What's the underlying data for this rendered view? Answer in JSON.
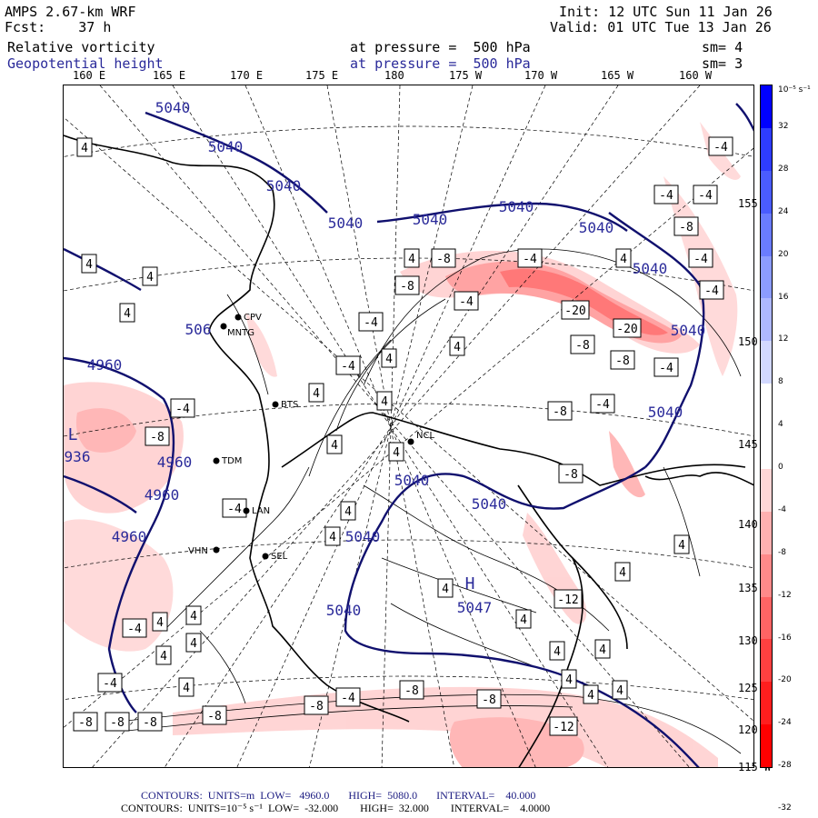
{
  "header": {
    "model": "AMPS 2.67-km WRF",
    "forecast": "Fcst:    37 h",
    "init": "Init: 12 UTC Sun 11 Jan 26",
    "valid": "Valid: 01 UTC Tue 13 Jan 26",
    "field1_name": "Relative vorticity",
    "field1_pressure": "at pressure =  500 hPa",
    "field1_sm": "sm= 4",
    "field2_name": "Geopotential height",
    "field2_pressure": "at pressure =  500 hPa",
    "field2_sm": "sm= 3"
  },
  "longitude_labels": [
    "160 E",
    "165 E",
    "170 E",
    "175 E",
    "180",
    "175 W",
    "170 W",
    "165 W",
    "160 W"
  ],
  "latitude_labels": [
    "155 W",
    "150 W",
    "145 W",
    "140 W",
    "135 W",
    "130 W",
    "125 W",
    "120 W",
    "115 W"
  ],
  "colorbar": {
    "unit": "10⁻⁵ s⁻¹",
    "ticks": [
      "32",
      "28",
      "24",
      "20",
      "16",
      "12",
      "8",
      "4",
      "0",
      "-4",
      "-8",
      "-12",
      "-16",
      "-20",
      "-24",
      "-28",
      "-32"
    ],
    "colors": [
      "#0000ff",
      "#2e3cff",
      "#4a5cff",
      "#6a7cff",
      "#8c9cff",
      "#aeb8ff",
      "#d2d8ff",
      "#ffffff",
      "#ffffff",
      "#ffd6d6",
      "#ffb0b0",
      "#ff8a8a",
      "#ff6464",
      "#ff4040",
      "#ff1e1e",
      "#ff0000"
    ]
  },
  "map_labels": {
    "stations": [
      "CPV",
      "MNTG",
      "BTS",
      "NCL",
      "TDM",
      "LAN",
      "VHN",
      "SEL"
    ],
    "height_contours": [
      "5040",
      "5040",
      "5040",
      "5040",
      "5040",
      "5040",
      "5040",
      "5040",
      "5040",
      "5040",
      "5040",
      "5040",
      "5040",
      "5040",
      "4960",
      "4960",
      "4960",
      "4960",
      "506",
      "5047",
      "936"
    ],
    "vort_boxes": [
      "4",
      "4",
      "4",
      "4",
      "4",
      "4",
      "4",
      "4",
      "4",
      "4",
      "4",
      "4",
      "4",
      "4",
      "4",
      "4",
      "4",
      "4",
      "4",
      "4",
      "4",
      "4",
      "4",
      "4",
      "4",
      "4",
      "4",
      "4",
      "4",
      "-4",
      "-4",
      "-4",
      "-4",
      "-4",
      "-4",
      "-4",
      "-4",
      "-4",
      "-4",
      "-4",
      "-4",
      "-4",
      "-4",
      "-4",
      "-4",
      "-8",
      "-8",
      "-8",
      "-8",
      "-8",
      "-8",
      "-8",
      "-8",
      "-8",
      "-8",
      "-8",
      "-8",
      "-8",
      "-8",
      "-8",
      "-12",
      "-12",
      "-20",
      "-20"
    ],
    "highs_lows": [
      "L",
      "H"
    ]
  },
  "footer": {
    "line1": "CONTOURS:  UNITS=m  LOW=   4960.0       HIGH=  5080.0       INTERVAL=    40.000",
    "line2": "CONTOURS:  UNITS=10⁻⁵ s⁻¹  LOW=  -32.000        HIGH=  32.000        INTERVAL=    4.0000"
  }
}
